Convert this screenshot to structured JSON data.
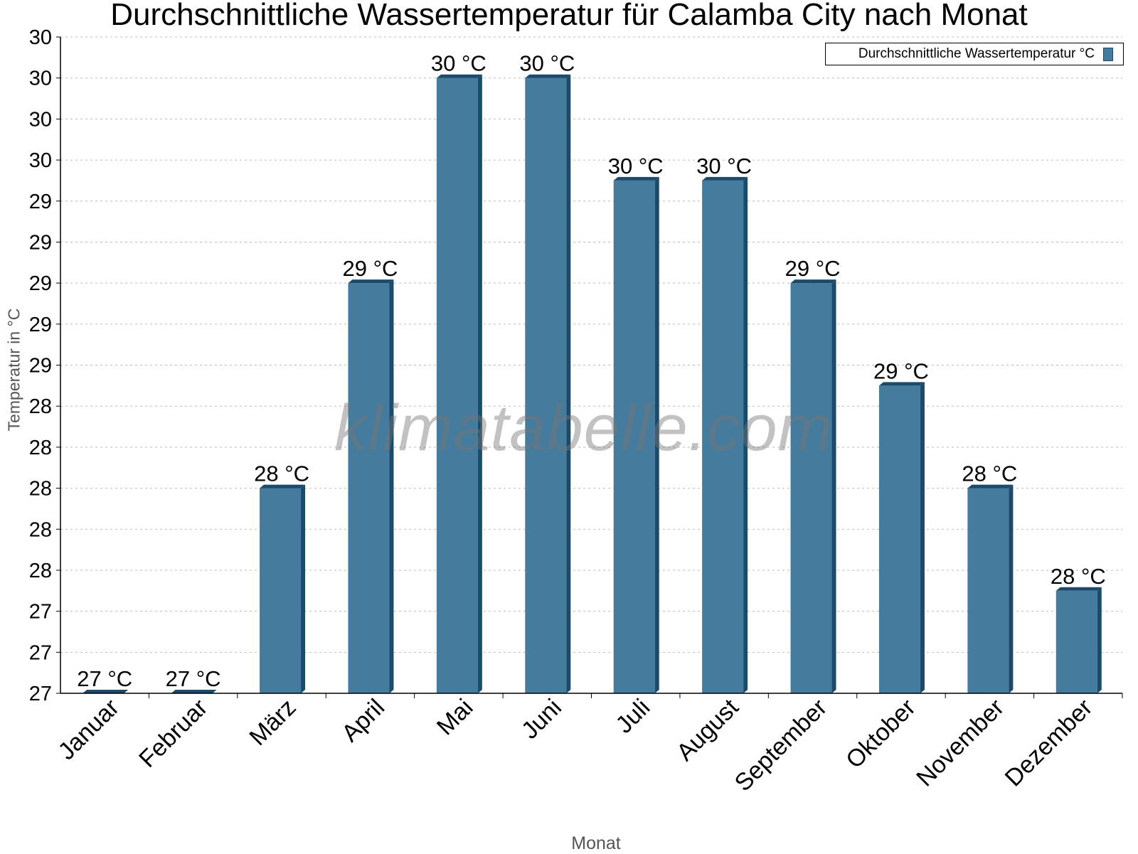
{
  "chart_data": {
    "type": "bar",
    "title": "Durchschnittliche Wassertemperatur für Calamba City nach Monat",
    "xlabel": "Monat",
    "ylabel": "Temperatur in °C",
    "categories": [
      "Januar",
      "Februar",
      "März",
      "April",
      "Mai",
      "Juni",
      "Juli",
      "August",
      "September",
      "Oktober",
      "November",
      "Dezember"
    ],
    "series": [
      {
        "name": "Durchschnittliche Wassertemperatur °C",
        "values": [
          27.0,
          27.0,
          28.0,
          29.0,
          30.0,
          30.0,
          29.5,
          29.5,
          29.0,
          28.5,
          28.0,
          27.5
        ],
        "labels": [
          "27 °C",
          "27 °C",
          "28 °C",
          "29 °C",
          "30 °C",
          "30 °C",
          "30 °C",
          "30 °C",
          "29 °C",
          "29 °C",
          "28 °C",
          "28 °C"
        ],
        "color": "#457b9d",
        "edge_color": "#1b4a6b"
      }
    ],
    "ylim": [
      27.0,
      30.2
    ],
    "yticks": [
      27.0,
      27.2,
      27.4,
      27.6,
      27.8,
      28.0,
      28.2,
      28.4,
      28.6,
      28.8,
      29.0,
      29.2,
      29.4,
      29.6,
      29.8,
      30.0,
      30.2
    ],
    "ytick_labels": [
      "27",
      "27",
      "27",
      "28",
      "28",
      "28",
      "28",
      "28",
      "29",
      "29",
      "29",
      "29",
      "29",
      "30",
      "30",
      "30",
      "30"
    ],
    "grid": true,
    "legend_position": "top-right",
    "watermark": "klimatabelle.com"
  }
}
